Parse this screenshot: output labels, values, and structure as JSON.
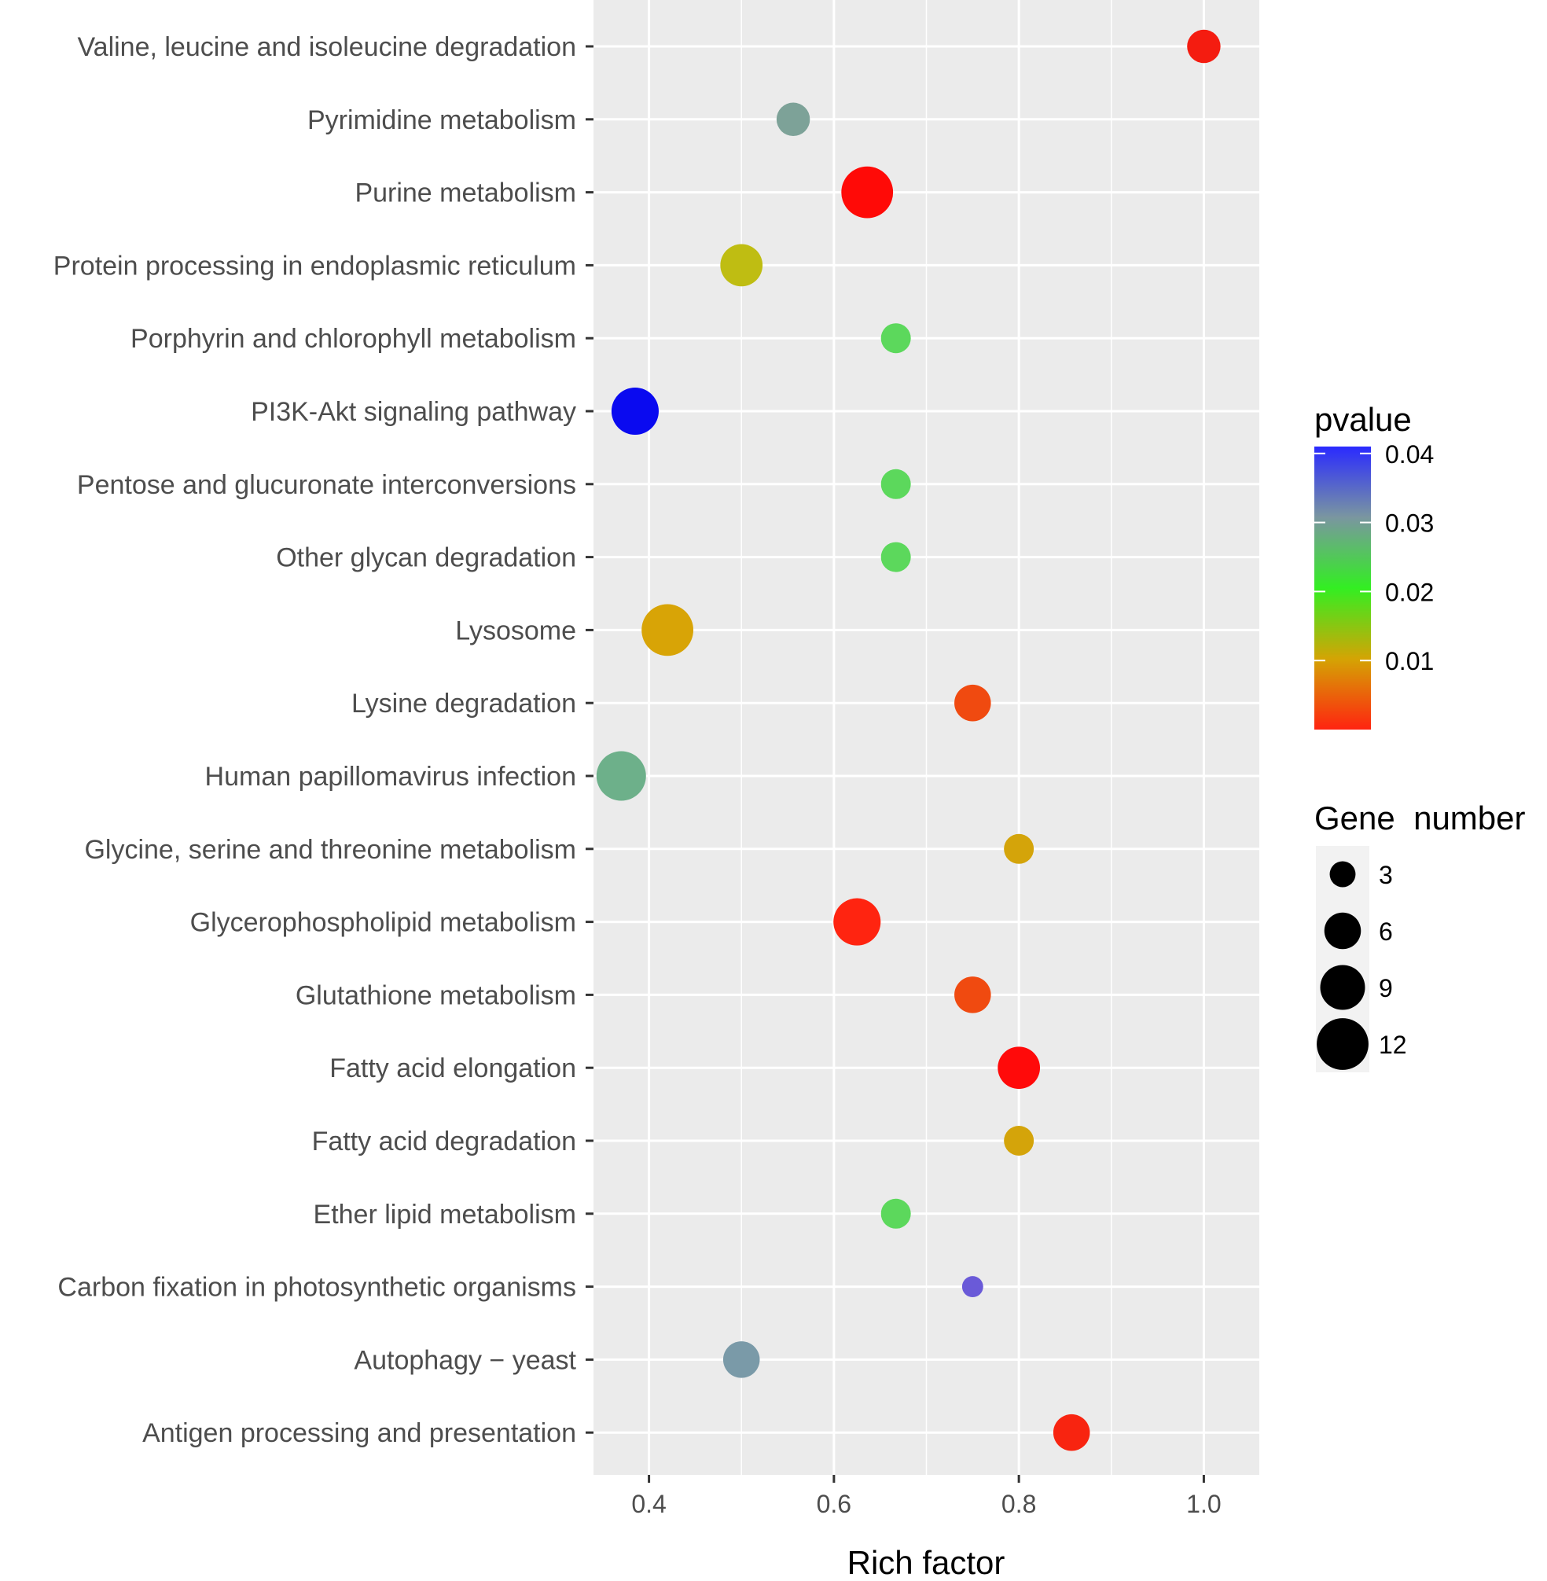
{
  "chart_data": {
    "type": "scatter",
    "title": "",
    "xlabel": "Rich factor",
    "ylabel": "",
    "xlim": [
      0.34,
      1.06
    ],
    "xticks": [
      "0.4",
      "0.6",
      "0.8",
      "1.0"
    ],
    "xtick_values": [
      0.4,
      0.6,
      0.8,
      1.0
    ],
    "grid": true,
    "points": [
      {
        "pathway": "Valine, leucine and isoleucine degradation",
        "rich_factor": 1.0,
        "pvalue": 0.0015,
        "gene_number": 5,
        "color": "#f41c10"
      },
      {
        "pathway": "Pyrimidine metabolism",
        "rich_factor": 0.556,
        "pvalue": 0.031,
        "gene_number": 5,
        "color": "#7da298"
      },
      {
        "pathway": "Purine metabolism",
        "rich_factor": 0.636,
        "pvalue": 0.0003,
        "gene_number": 12,
        "color": "#ff0a07"
      },
      {
        "pathway": "Protein processing in endoplasmic reticulum",
        "rich_factor": 0.5,
        "pvalue": 0.012,
        "gene_number": 8,
        "color": "#bfbd12"
      },
      {
        "pathway": "Porphyrin and chlorophyll metabolism",
        "rich_factor": 0.667,
        "pvalue": 0.022,
        "gene_number": 4,
        "color": "#5cd85c"
      },
      {
        "pathway": "PI3K-Akt signaling pathway",
        "rich_factor": 0.385,
        "pvalue": 0.041,
        "gene_number": 10,
        "color": "#0a0af0"
      },
      {
        "pathway": "Pentose and glucuronate interconversions",
        "rich_factor": 0.667,
        "pvalue": 0.022,
        "gene_number": 4,
        "color": "#5cd85c"
      },
      {
        "pathway": "Other glycan degradation",
        "rich_factor": 0.667,
        "pvalue": 0.022,
        "gene_number": 4,
        "color": "#5cd85c"
      },
      {
        "pathway": "Lysosome",
        "rich_factor": 0.42,
        "pvalue": 0.008,
        "gene_number": 12,
        "color": "#d8a406"
      },
      {
        "pathway": "Lysine degradation",
        "rich_factor": 0.75,
        "pvalue": 0.003,
        "gene_number": 6,
        "color": "#f04a10"
      },
      {
        "pathway": "Human papillomavirus infection",
        "rich_factor": 0.37,
        "pvalue": 0.028,
        "gene_number": 11,
        "color": "#6db08a"
      },
      {
        "pathway": "Glycine, serine and threonine metabolism",
        "rich_factor": 0.8,
        "pvalue": 0.009,
        "gene_number": 4,
        "color": "#d4a40a"
      },
      {
        "pathway": "Glycerophospholipid metabolism",
        "rich_factor": 0.625,
        "pvalue": 0.0008,
        "gene_number": 10,
        "color": "#ff2410"
      },
      {
        "pathway": "Glutathione metabolism",
        "rich_factor": 0.75,
        "pvalue": 0.003,
        "gene_number": 6,
        "color": "#f04a10"
      },
      {
        "pathway": "Fatty acid elongation",
        "rich_factor": 0.8,
        "pvalue": 0.0003,
        "gene_number": 8,
        "color": "#ff0a0a"
      },
      {
        "pathway": "Fatty acid degradation",
        "rich_factor": 0.8,
        "pvalue": 0.009,
        "gene_number": 4,
        "color": "#d4a40a"
      },
      {
        "pathway": "Ether lipid metabolism",
        "rich_factor": 0.667,
        "pvalue": 0.022,
        "gene_number": 4,
        "color": "#5cd85c"
      },
      {
        "pathway": "Carbon fixation in photosynthetic organisms",
        "rich_factor": 0.75,
        "pvalue": 0.038,
        "gene_number": 2,
        "color": "#6a5ad8"
      },
      {
        "pathway": "Autophagy − yeast",
        "rich_factor": 0.5,
        "pvalue": 0.034,
        "gene_number": 6,
        "color": "#7a9aa8"
      },
      {
        "pathway": "Antigen processing and presentation",
        "rich_factor": 0.857,
        "pvalue": 0.0012,
        "gene_number": 6,
        "color": "#f82410"
      }
    ],
    "legend": {
      "color_title": "pvalue",
      "color_ticks": [
        "0.04",
        "0.03",
        "0.02",
        "0.01"
      ],
      "color_tick_values": [
        0.04,
        0.03,
        0.02,
        0.01
      ],
      "color_range": [
        0.0,
        0.041
      ],
      "color_stops": [
        "#2a2aff",
        "#7a96a0",
        "#33ee22",
        "#d4a404",
        "#ff2410"
      ],
      "size_title": "Gene  number",
      "size_entries": [
        {
          "label": "3",
          "value": 3
        },
        {
          "label": "6",
          "value": 6
        },
        {
          "label": "9",
          "value": 9
        },
        {
          "label": "12",
          "value": 12
        }
      ]
    },
    "colors": {
      "panel_background": "#ebebeb",
      "grid": "#ffffff",
      "axis_text": "#4d4d4d",
      "tick": "#333333"
    }
  }
}
